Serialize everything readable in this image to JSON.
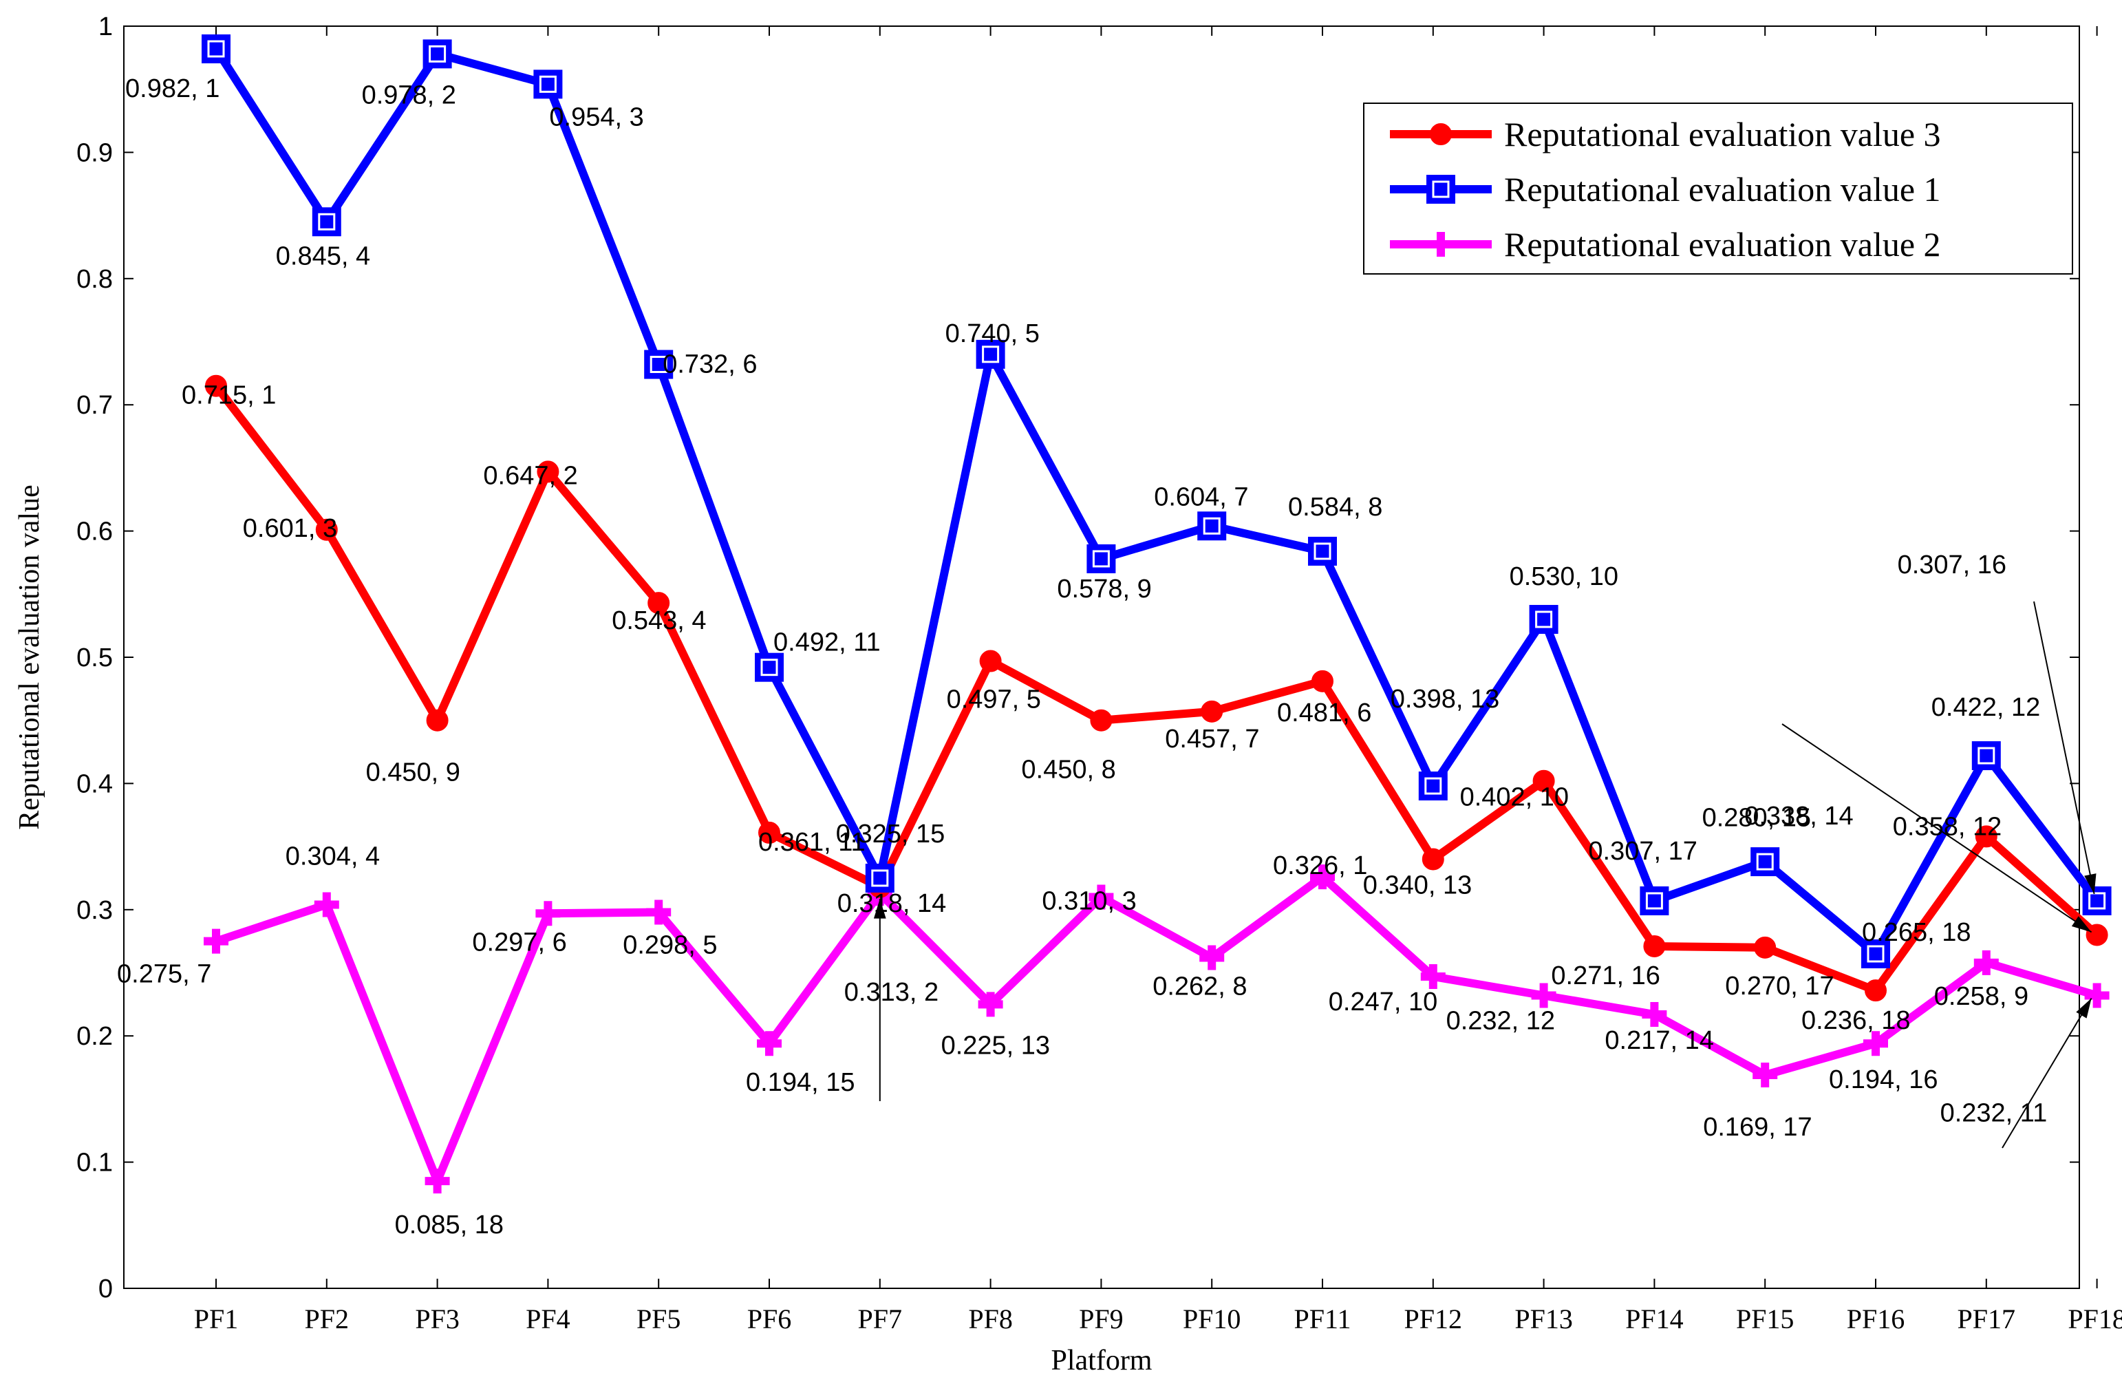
{
  "chart_data": {
    "type": "line",
    "xlabel": "Platform",
    "ylabel": "Reputational evaluation value",
    "ylim": [
      0,
      1
    ],
    "yticks": [
      0,
      0.1,
      0.2,
      0.3,
      0.4,
      0.5,
      0.6,
      0.7,
      0.8,
      0.9,
      1
    ],
    "ytick_labels": [
      "0",
      "0.1",
      "0.2",
      "0.3",
      "0.4",
      "0.5",
      "0.6",
      "0.7",
      "0.8",
      "0.9",
      "1"
    ],
    "categories": [
      "PF1",
      "PF2",
      "PF3",
      "PF4",
      "PF5",
      "PF6",
      "PF7",
      "PF8",
      "PF9",
      "PF10",
      "PF11",
      "PF12",
      "PF13",
      "PF14",
      "PF15",
      "PF16",
      "PF17",
      "PF18"
    ],
    "legend_position": "top-right",
    "series": [
      {
        "name": "Reputational evaluation value 3",
        "color": "#ff0000",
        "marker": "circle-hex",
        "values": [
          0.715,
          0.601,
          0.45,
          0.647,
          0.543,
          0.361,
          0.318,
          0.497,
          0.45,
          0.457,
          0.481,
          0.34,
          0.402,
          0.271,
          0.27,
          0.236,
          0.358,
          0.28
        ],
        "labels": [
          "0.715, 1",
          "0.601, 3",
          "0.450, 9",
          "0.647, 2",
          "0.543, 4",
          "0.361, 11",
          "0.318, 14",
          "0.497, 5",
          "0.450, 8",
          "0.457, 7",
          "0.481, 6",
          "0.340, 13",
          "0.402, 10",
          "0.271, 16",
          "0.270, 17",
          "0.236, 18",
          "0.358, 12",
          "0.280, 15"
        ]
      },
      {
        "name": "Reputational evaluation value 1",
        "color": "#0000ff",
        "marker": "square",
        "values": [
          0.982,
          0.845,
          0.978,
          0.954,
          0.732,
          0.492,
          0.325,
          0.74,
          0.578,
          0.604,
          0.584,
          0.398,
          0.53,
          0.307,
          0.338,
          0.265,
          0.422,
          0.307
        ],
        "labels": [
          "0.982, 1",
          "0.845, 4",
          "0.978, 2",
          "0.954, 3",
          "0.732, 6",
          "0.492, 11",
          "0.325, 15",
          "0.740, 5",
          "0.578, 9",
          "0.604, 7",
          "0.584, 8",
          "0.398, 13",
          "0.530, 10",
          "0.307, 17",
          "0.338, 14",
          "0.265, 18",
          "0.422, 12",
          "0.307, 16"
        ]
      },
      {
        "name": "Reputational evaluation value 2",
        "color": "#ff00ff",
        "marker": "plus",
        "values": [
          0.275,
          0.304,
          0.085,
          0.297,
          0.298,
          0.194,
          0.313,
          0.225,
          0.31,
          0.262,
          0.326,
          0.247,
          0.232,
          0.217,
          0.169,
          0.194,
          0.258,
          0.232
        ],
        "labels": [
          "0.275, 7",
          "0.304, 4",
          "0.085, 18",
          "0.297, 6",
          "0.298, 5",
          "0.194, 15",
          "0.313, 2",
          "0.225, 13",
          "0.310, 3",
          "0.262, 8",
          "0.326, 1",
          "0.247, 10",
          "0.232, 12",
          "0.217, 14",
          "0.169, 17",
          "0.194, 16",
          "0.258, 9",
          "0.232, 11"
        ]
      }
    ]
  }
}
